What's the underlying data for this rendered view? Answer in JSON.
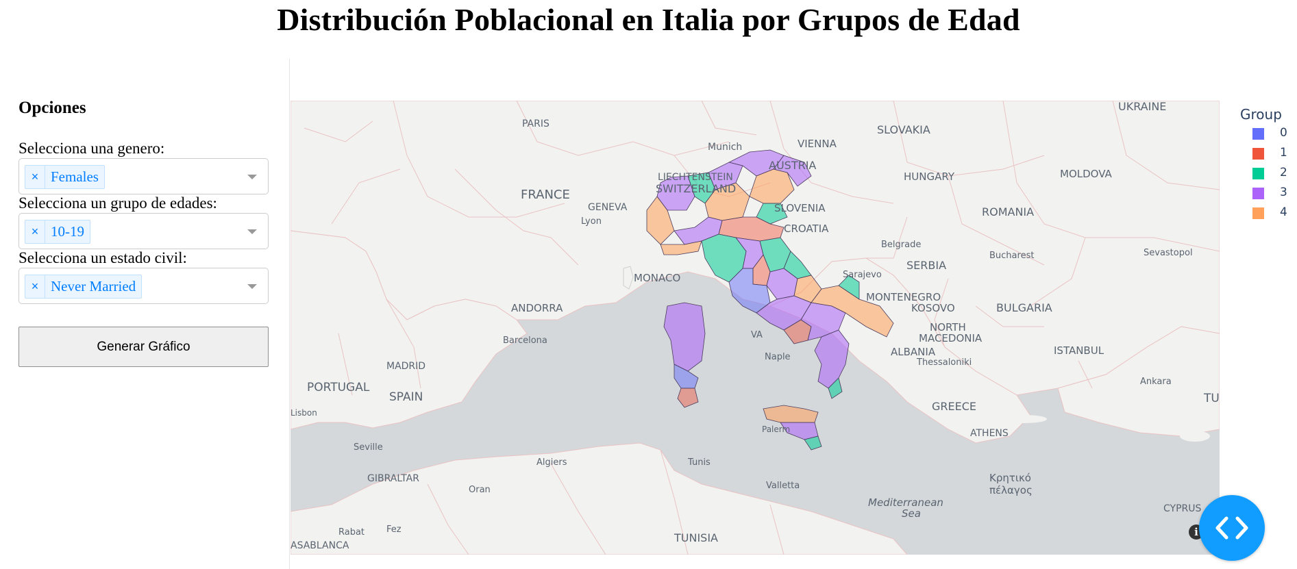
{
  "page": {
    "title": "Distribución Poblacional en Italia por Grupos de Edad"
  },
  "sidebar": {
    "heading": "Opciones",
    "gender": {
      "label": "Selecciona una genero:",
      "selected": "Females"
    },
    "age_group": {
      "label": "Selecciona un grupo de edades:",
      "selected": "10-19"
    },
    "marital_status": {
      "label": "Selecciona un estado civil:",
      "selected": "Never Married"
    },
    "remove_symbol": "×",
    "generate_button": "Generar Gráfico"
  },
  "map": {
    "labels": {
      "ukraine": "UKRAINE",
      "slovakia": "SLOVAKIA",
      "paris": "PARIS",
      "munich": "Munich",
      "vienna": "VIENNA",
      "austria": "AUSTRIA",
      "liechtenstein": "LIECHTENSTEIN",
      "switzerland": "SWITZERLAND",
      "hungary": "HUNGARY",
      "moldova": "MOLDOVA",
      "france": "FRANCE",
      "geneva": "GENEVA",
      "lyon": "Lyon",
      "slovenia": "SLOVENIA",
      "croatia": "CROATIA",
      "romania": "ROMANIA",
      "belgrade": "Belgrade",
      "serbia": "SERBIA",
      "bucharest": "Bucharest",
      "sevastopol": "Sevastopol",
      "monaco": "MONACO",
      "sarajevo": "Sarajevo",
      "montenegro": "MONTENEGRO",
      "kosovo": "KOSOVO",
      "bulgaria": "BULGARIA",
      "andorra": "ANDORRA",
      "north_macedonia_1": "NORTH",
      "north_macedonia_2": "MACEDONIA",
      "barcelona": "Barcelona",
      "albania": "ALBANIA",
      "istanbul": "ISTANBUL",
      "madrid": "MADRID",
      "thessaloniki": "Thessaloniki",
      "naples": "Naple",
      "portugal": "PORTUGAL",
      "spain": "SPAIN",
      "ankara": "Ankara",
      "greece": "GREECE",
      "lisbon": "Lisbon",
      "tur": "TUI",
      "athens": "ATHENS",
      "seville": "Seville",
      "palermo": "Palerm",
      "gibraltar": "GIBRALTAR",
      "algiers": "Algiers",
      "tunis": "Tunis",
      "crete_1": "Κρητικό",
      "crete_2": "πέλαγος",
      "oran": "Oran",
      "valletta": "Valletta",
      "mediterranean_1": "Mediterranean",
      "mediterranean_2": "Sea",
      "cyprus": "CYPRUS",
      "rabat": "Rabat",
      "fez": "Fez",
      "tunisia": "TUNISIA",
      "casablanca": "ASABLANCA",
      "vatican": "VA"
    },
    "colors": {
      "sea": "#d4d8db",
      "land": "#f2f2f0",
      "border": "#e9c3c3"
    }
  },
  "legend": {
    "title": "Group",
    "items": [
      {
        "label": "0",
        "color": "#636efa"
      },
      {
        "label": "1",
        "color": "#ef553b"
      },
      {
        "label": "2",
        "color": "#00cc96"
      },
      {
        "label": "3",
        "color": "#ab63fa"
      },
      {
        "label": "4",
        "color": "#ffa15a"
      }
    ]
  },
  "icons": {
    "info": "i",
    "code_toggle": "code-brackets-icon"
  }
}
